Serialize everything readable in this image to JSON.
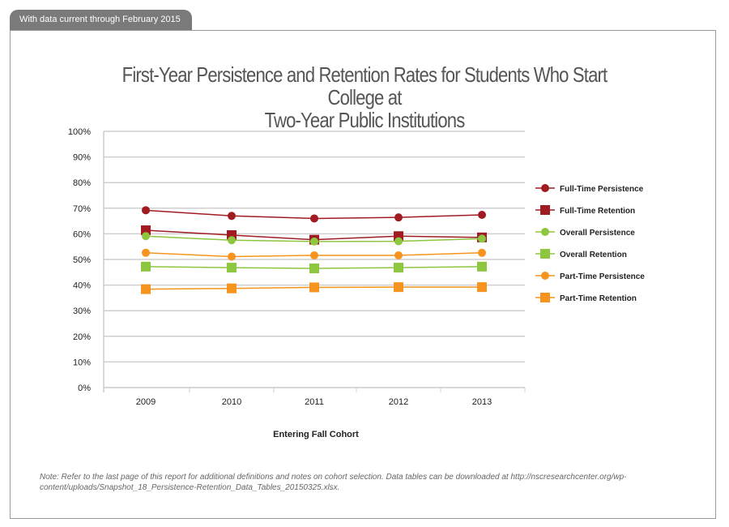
{
  "header_tab": "With data current through February 2015",
  "chart_data": {
    "type": "line",
    "title_lines": [
      "First-Year Persistence and Retention Rates for Students Who Start College at",
      "Two-Year Public Institutions"
    ],
    "xlabel": "Entering Fall Cohort",
    "ylabel": "",
    "categories": [
      "2009",
      "2010",
      "2011",
      "2012",
      "2013"
    ],
    "ylim": [
      0,
      100
    ],
    "yticks": [
      "0%",
      "10%",
      "20%",
      "30%",
      "40%",
      "50%",
      "60%",
      "70%",
      "80%",
      "90%",
      "100%"
    ],
    "grid": true,
    "legend_position": "right",
    "series": [
      {
        "name": "Full-Time Persistence",
        "values": [
          69.2,
          67.0,
          66.0,
          66.4,
          67.4
        ],
        "color": "#a01c22",
        "marker": "circle"
      },
      {
        "name": "Full-Time Retention",
        "values": [
          61.4,
          59.5,
          57.7,
          59.1,
          58.6
        ],
        "color": "#a01c22",
        "marker": "square"
      },
      {
        "name": "Overall Persistence",
        "values": [
          59.1,
          57.5,
          57.0,
          57.1,
          58.1
        ],
        "color": "#8dc63f",
        "marker": "circle"
      },
      {
        "name": "Overall Retention",
        "values": [
          47.2,
          46.8,
          46.5,
          46.8,
          47.2
        ],
        "color": "#8dc63f",
        "marker": "square"
      },
      {
        "name": "Part-Time Persistence",
        "values": [
          52.6,
          51.1,
          51.6,
          51.6,
          52.6
        ],
        "color": "#f7941d",
        "marker": "circle"
      },
      {
        "name": "Part-Time Retention",
        "values": [
          38.4,
          38.7,
          39.1,
          39.2,
          39.2
        ],
        "color": "#f7941d",
        "marker": "square"
      }
    ]
  },
  "note": "Note: Refer to the last page of this report for additional definitions and notes on cohort selection. Data tables can be downloaded at http://nscresearchcenter.org/wp-content/uploads/Snapshot_18_Persistence-Retention_Data_Tables_20150325.xlsx."
}
